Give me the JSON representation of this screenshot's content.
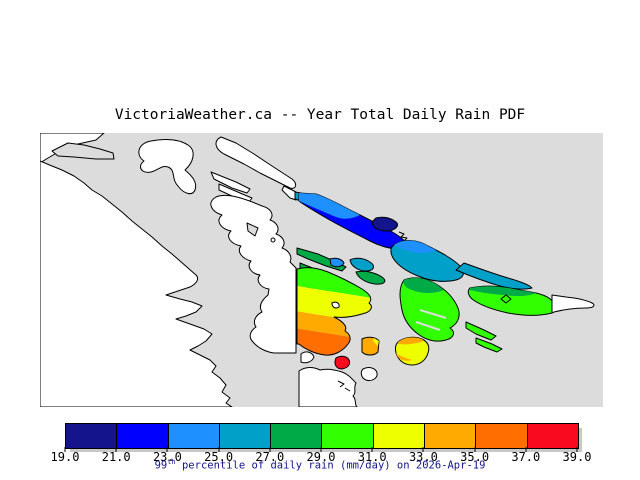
{
  "title": "VictoriaWeather.ca -- Year Total Daily Rain PDF",
  "colorbar": {
    "tick_labels": [
      "19.0",
      "21.0",
      "23.0",
      "25.0",
      "27.0",
      "29.0",
      "31.0",
      "33.0",
      "35.0",
      "37.0",
      "39.0"
    ],
    "segment_colors": [
      "#14148C",
      "#0000FF",
      "#1E90FF",
      "#00A0C8",
      "#00AA46",
      "#32FF00",
      "#EEFF00",
      "#FFAA00",
      "#FF6E00",
      "#FA0A1E"
    ],
    "units": "mm/day",
    "caption": {
      "prefix": "99",
      "sup": "th",
      "rest": " percentile of daily rain (mm/day) on 2026-Apr-19"
    }
  },
  "map": {
    "water_color": "#DCDCDC",
    "land_color": "#FFFFFF",
    "outline_color": "#000000",
    "patches": [
      {
        "name": "blue-chain-island",
        "band": "21.0-23.0"
      },
      {
        "name": "blue-chain-upper",
        "band": "23.0-25.0"
      },
      {
        "name": "navy-core",
        "band": "19.0-21.0"
      },
      {
        "name": "chain-west-tip",
        "band": "25.0-27.0"
      },
      {
        "name": "teal-island",
        "band": "25.0-27.0"
      },
      {
        "name": "teal-island-upper",
        "band": "23.0-25.0"
      },
      {
        "name": "teal-east-extension",
        "band": "25.0-27.0"
      },
      {
        "name": "green-strip-1",
        "band": "27.0-29.0"
      },
      {
        "name": "green-strip-2",
        "band": "27.0-29.0"
      },
      {
        "name": "green-strip-3",
        "band": "27.0-29.0"
      },
      {
        "name": "pender-islet-teal",
        "band": "25.0-27.0"
      },
      {
        "name": "pender-islet-green",
        "band": "27.0-29.0"
      },
      {
        "name": "small-blue-islet",
        "band": "23.0-25.0"
      },
      {
        "name": "sanjuan-west-blob",
        "band": "29.0-31.0"
      },
      {
        "name": "sanjuan-east-island",
        "band": "29.0-31.0"
      },
      {
        "name": "lower-green-islets",
        "band": "29.0-31.0"
      },
      {
        "name": "saanich-gradient",
        "band": "29.0-37.0"
      },
      {
        "name": "red-blob",
        "band": "37.0-39.0"
      },
      {
        "name": "orange-patch",
        "band": "33.0-35.0"
      },
      {
        "name": "yellow-orange-blob",
        "band": "31.0-35.0"
      }
    ]
  }
}
